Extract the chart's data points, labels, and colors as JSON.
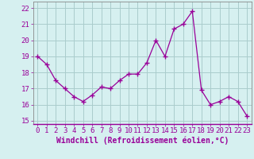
{
  "x": [
    0,
    1,
    2,
    3,
    4,
    5,
    6,
    7,
    8,
    9,
    10,
    11,
    12,
    13,
    14,
    15,
    16,
    17,
    18,
    19,
    20,
    21,
    22,
    23
  ],
  "y": [
    19.0,
    18.5,
    17.5,
    17.0,
    16.5,
    16.2,
    16.6,
    17.1,
    17.0,
    17.5,
    17.9,
    17.9,
    18.6,
    20.0,
    19.0,
    20.7,
    21.0,
    21.8,
    16.9,
    16.0,
    16.2,
    16.5,
    16.2,
    15.3
  ],
  "line_color": "#990099",
  "marker": "+",
  "marker_size": 4,
  "bg_color": "#d6f0f0",
  "grid_color": "#aacccc",
  "xlabel": "Windchill (Refroidissement éolien,°C)",
  "xlabel_fontsize": 7,
  "ylabel_ticks": [
    15,
    16,
    17,
    18,
    19,
    20,
    21,
    22
  ],
  "xlim": [
    -0.5,
    23.5
  ],
  "ylim": [
    14.8,
    22.4
  ],
  "xtick_labels": [
    "0",
    "1",
    "2",
    "3",
    "4",
    "5",
    "6",
    "7",
    "8",
    "9",
    "10",
    "11",
    "12",
    "13",
    "14",
    "15",
    "16",
    "17",
    "18",
    "19",
    "20",
    "21",
    "22",
    "23"
  ],
  "tick_fontsize": 6.5,
  "tick_color": "#990099"
}
